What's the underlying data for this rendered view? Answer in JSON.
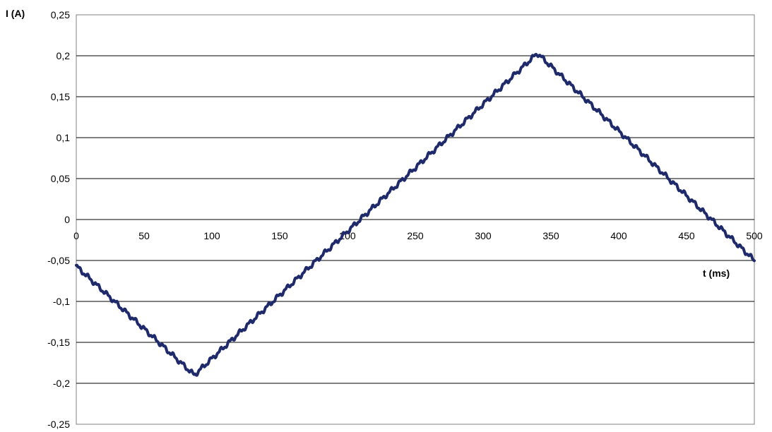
{
  "chart_data": {
    "type": "line",
    "xlabel": "t (ms)",
    "ylabel": "I (A)",
    "xlim": [
      0,
      500
    ],
    "ylim": [
      -0.25,
      0.25
    ],
    "x_ticks": [
      "0",
      "50",
      "100",
      "150",
      "200",
      "250",
      "300",
      "350",
      "400",
      "450",
      "500"
    ],
    "y_ticks": [
      "0,25",
      "0,2",
      "0,15",
      "0,1",
      "0,05",
      "0",
      "-0,05",
      "-0,1",
      "-0,15",
      "-0,2",
      "-0,25"
    ],
    "grid": "horizontal",
    "legend": "none",
    "line_color": "#1f2a6b",
    "series": [
      {
        "x": [
          0,
          87,
          340,
          500
        ],
        "y": [
          -0.057,
          -0.19,
          0.203,
          -0.05
        ]
      }
    ]
  }
}
